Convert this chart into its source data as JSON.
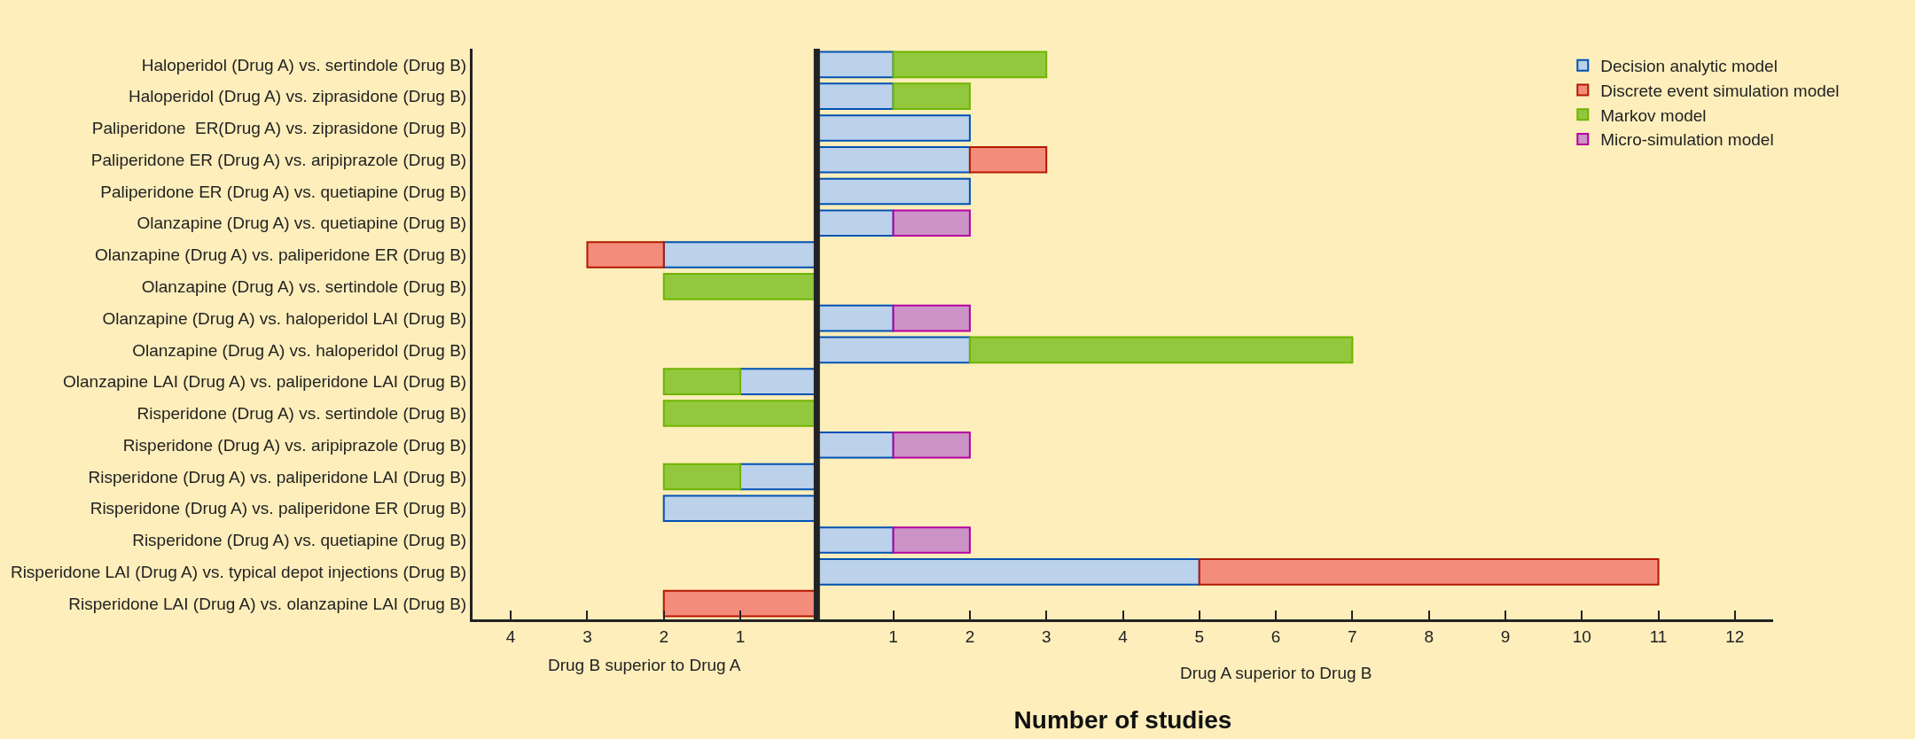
{
  "chart_data": {
    "type": "bar",
    "orientation": "horizontal",
    "stacked": true,
    "xlabel": "Number of studies",
    "categories": [
      "Haloperidol (Drug A) vs. sertindole (Drug B)",
      "Haloperidol (Drug A) vs. ziprasidone (Drug B)",
      "Paliperidone  ER(Drug A) vs. ziprasidone (Drug B)",
      "Paliperidone ER (Drug A) vs. aripiprazole (Drug B)",
      "Paliperidone ER (Drug A) vs. quetiapine (Drug B)",
      "Olanzapine (Drug A) vs. quetiapine (Drug B)",
      "Olanzapine (Drug A) vs. paliperidone ER (Drug B)",
      "Olanzapine (Drug A) vs. sertindole (Drug B)",
      "Olanzapine (Drug A) vs. haloperidol LAI (Drug B)",
      "Olanzapine (Drug A) vs. haloperidol (Drug B)",
      "Olanzapine LAI (Drug A) vs. paliperidone LAI (Drug B)",
      "Risperidone (Drug A) vs. sertindole (Drug B)",
      "Risperidone (Drug A) vs. aripiprazole (Drug B)",
      "Risperidone (Drug A) vs. paliperidone LAI (Drug B)",
      "Risperidone (Drug A) vs. paliperidone ER (Drug B)",
      "Risperidone (Drug A) vs. quetiapine (Drug B)",
      "Risperidone LAI (Drug A) vs. typical depot injections (Drug B)",
      "Risperidone LAI (Drug A) vs. olanzapine LAI (Drug B)"
    ],
    "series": [
      {
        "name": "Decision analytic model",
        "color": "#bcd1ea",
        "values": [
          1,
          1,
          2,
          2,
          2,
          1,
          -2,
          null,
          1,
          2,
          -1,
          null,
          1,
          -1,
          -2,
          1,
          5,
          null
        ]
      },
      {
        "name": "Discrete event simulation model",
        "color": "#f48c7c",
        "values": [
          null,
          null,
          null,
          1,
          null,
          null,
          -1,
          null,
          null,
          null,
          null,
          null,
          null,
          null,
          null,
          null,
          6,
          -2
        ]
      },
      {
        "name": "Markov model",
        "color": "#93c83e",
        "values": [
          2,
          1,
          null,
          null,
          null,
          null,
          null,
          -2,
          null,
          5,
          -1,
          -2,
          null,
          -1,
          null,
          null,
          null,
          null
        ]
      },
      {
        "name": "Micro-simulation model",
        "color": "#cc93c6",
        "values": [
          null,
          null,
          null,
          null,
          null,
          1,
          null,
          null,
          1,
          null,
          null,
          null,
          1,
          null,
          null,
          1,
          null,
          null
        ]
      }
    ],
    "xlim": [
      -4.5,
      12.5
    ],
    "xticks": [
      {
        "value": -4,
        "label": "4"
      },
      {
        "value": -3,
        "label": "3"
      },
      {
        "value": -2,
        "label": "2"
      },
      {
        "value": -1,
        "label": "1"
      },
      1,
      2,
      3,
      4,
      5,
      6,
      7,
      8,
      9,
      10,
      11,
      12
    ],
    "ref_lines": [
      {
        "axis": "x",
        "value": 0,
        "label": null,
        "color": "#222222"
      }
    ],
    "annotations": [
      "Drug B superior to Drug A",
      "Drug A superior to Drug B"
    ],
    "legend": "top right",
    "grid": false
  }
}
